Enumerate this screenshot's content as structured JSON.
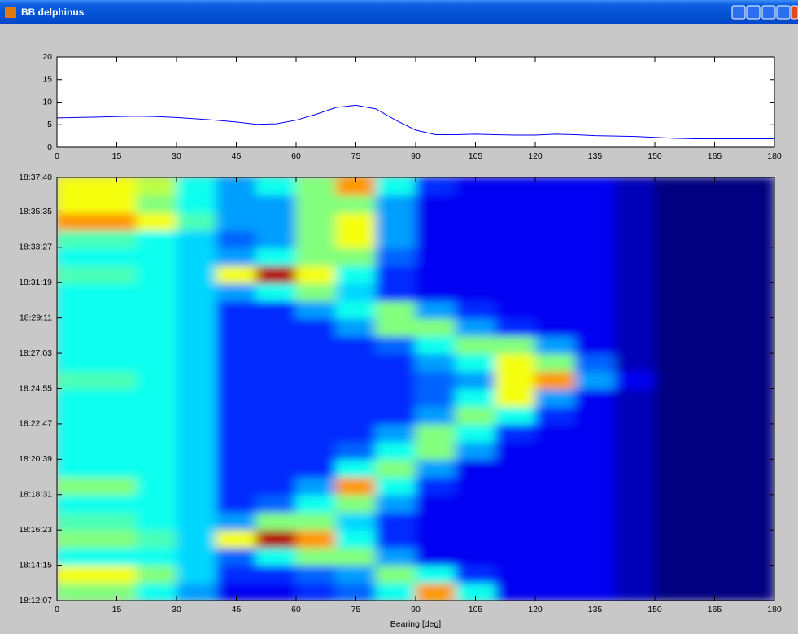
{
  "window": {
    "title": "BB delphinus"
  },
  "chart_data": [
    {
      "type": "line",
      "x": [
        0,
        5,
        10,
        15,
        20,
        25,
        30,
        35,
        40,
        45,
        50,
        55,
        60,
        65,
        70,
        75,
        80,
        85,
        90,
        95,
        100,
        105,
        110,
        115,
        120,
        125,
        130,
        135,
        140,
        145,
        150,
        155,
        160,
        165,
        170,
        175,
        180
      ],
      "values": [
        6.5,
        6.6,
        6.7,
        6.8,
        6.9,
        6.8,
        6.6,
        6.3,
        6,
        5.6,
        5.1,
        5.2,
        6,
        7.3,
        8.8,
        9.3,
        8.5,
        6,
        3.8,
        2.8,
        2.8,
        2.9,
        2.8,
        2.7,
        2.7,
        2.9,
        2.8,
        2.6,
        2.5,
        2.4,
        2.2,
        2,
        1.9,
        1.9,
        1.9,
        1.9,
        1.9
      ],
      "color": "#0000ff",
      "xlim": [
        0,
        180
      ],
      "xticks": [
        0,
        15,
        30,
        45,
        60,
        75,
        90,
        105,
        120,
        135,
        150,
        165,
        180
      ],
      "ylim": [
        0,
        20
      ],
      "yticks": [
        0,
        5,
        10,
        15,
        20
      ]
    },
    {
      "type": "heatmap",
      "colormap": "jet",
      "x_label": "Bearing [deg]",
      "xbins": [
        0,
        10,
        20,
        30,
        40,
        50,
        60,
        70,
        80,
        90,
        100,
        110,
        120,
        130,
        140,
        150,
        160,
        170,
        180
      ],
      "z": [
        [
          5,
          5,
          4,
          3,
          1.5,
          1.5,
          2,
          2.5,
          4,
          7,
          4,
          1.5,
          1.5,
          1.5,
          1,
          0.5,
          0.5,
          0.5
        ],
        [
          6,
          6,
          5,
          3.5,
          2,
          2,
          2.5,
          3,
          5,
          4,
          2,
          1.5,
          1.5,
          1.5,
          1,
          0.5,
          0.5,
          0.5
        ],
        [
          4,
          4,
          4,
          3.5,
          2.5,
          4,
          5,
          5,
          3,
          1.5,
          1.5,
          1.5,
          1.5,
          1.5,
          1,
          0.5,
          0.5,
          0.5
        ],
        [
          5,
          5,
          4.5,
          3.5,
          6,
          9,
          7,
          4,
          2,
          1.5,
          1.5,
          1.5,
          1.5,
          1.5,
          1,
          0.5,
          0.5,
          0.5
        ],
        [
          4.5,
          4.5,
          4,
          3.5,
          3,
          5,
          5,
          3.5,
          2,
          1.5,
          1.5,
          1.5,
          1.5,
          1.5,
          1,
          0.5,
          0.5,
          0.5
        ],
        [
          4,
          4,
          4,
          3.5,
          2,
          2.5,
          4,
          5,
          3,
          1.5,
          1.5,
          1.5,
          1.5,
          1.5,
          1,
          0.5,
          0.5,
          0.5
        ],
        [
          5,
          5,
          4,
          3.5,
          2,
          2,
          3,
          7,
          4,
          2,
          1.5,
          1.5,
          1.5,
          1.5,
          1,
          0.5,
          0.5,
          0.5
        ],
        [
          4,
          4,
          4,
          3.5,
          2,
          2,
          2,
          4,
          5,
          3,
          1.5,
          1.5,
          1.5,
          1.5,
          1,
          0.5,
          0.5,
          0.5
        ],
        [
          4,
          4,
          4,
          3.5,
          2,
          2,
          2,
          2.5,
          4,
          5,
          3,
          1.5,
          1.5,
          1.5,
          1,
          0.5,
          0.5,
          0.5
        ],
        [
          4,
          4,
          4,
          3.5,
          2,
          2,
          2,
          2,
          3,
          5,
          4,
          2,
          1.5,
          1.5,
          1,
          0.5,
          0.5,
          0.5
        ],
        [
          4,
          4,
          4,
          3.5,
          2,
          2,
          2,
          2,
          2,
          3,
          5,
          4,
          2,
          1.5,
          1,
          0.5,
          0.5,
          0.5
        ],
        [
          4,
          4,
          4,
          3.5,
          2,
          2,
          2,
          2,
          2,
          2.5,
          4,
          6,
          3,
          1.5,
          1,
          0.5,
          0.5,
          0.5
        ],
        [
          4.5,
          4.5,
          4,
          3.5,
          2,
          2,
          2,
          2,
          2,
          2.5,
          3,
          6,
          7,
          3,
          1.5,
          0.5,
          0.5,
          0.5
        ],
        [
          4,
          4,
          4,
          3.5,
          2,
          2,
          2,
          2,
          2,
          3,
          4,
          6,
          5,
          2.5,
          1,
          0.5,
          0.5,
          0.5
        ],
        [
          4,
          4,
          4,
          3.5,
          2,
          2,
          2,
          2,
          2.5,
          4,
          5,
          5,
          3,
          1.5,
          1,
          0.5,
          0.5,
          0.5
        ],
        [
          4,
          4,
          4,
          3.5,
          2,
          2,
          2,
          3,
          5,
          5,
          3,
          2,
          1.5,
          1.5,
          1,
          0.5,
          0.5,
          0.5
        ],
        [
          4,
          4,
          4,
          3.5,
          2,
          2,
          3,
          4,
          5,
          3,
          2,
          1.5,
          1.5,
          1.5,
          1,
          0.5,
          0.5,
          0.5
        ],
        [
          4,
          4,
          4,
          3.5,
          3,
          4,
          5,
          3.5,
          2,
          1.5,
          1.5,
          1.5,
          1.5,
          1.5,
          1,
          0.5,
          0.5,
          0.5
        ],
        [
          4.5,
          4.5,
          4,
          3.5,
          6,
          9,
          6,
          4,
          2,
          1.5,
          1.5,
          1.5,
          1.5,
          1.5,
          1,
          0.5,
          0.5,
          0.5
        ],
        [
          4,
          4,
          4,
          3.5,
          3,
          4,
          5,
          5,
          2.5,
          1.5,
          1.5,
          1.5,
          1.5,
          1.5,
          1,
          0.5,
          0.5,
          0.5
        ],
        [
          4.5,
          4.5,
          4,
          3.5,
          2.5,
          3,
          5,
          6,
          3,
          1.5,
          1.5,
          1.5,
          1.5,
          1.5,
          1,
          0.5,
          0.5,
          0.5
        ],
        [
          7,
          7,
          6,
          4.5,
          3,
          3,
          5,
          6,
          3,
          1.5,
          1.5,
          1.5,
          1.5,
          1.5,
          1,
          0.5,
          0.5,
          0.5
        ],
        [
          6,
          6,
          5,
          4,
          3,
          3,
          5,
          5,
          3,
          1.5,
          1.5,
          1.5,
          1.5,
          1.5,
          1,
          0.5,
          0.5,
          0.5
        ],
        [
          6,
          6,
          5.5,
          4,
          3,
          4,
          5,
          7,
          4,
          2,
          1.5,
          1.5,
          1.5,
          1.5,
          1,
          0.5,
          0.5,
          0.5
        ]
      ],
      "xlim": [
        0,
        180
      ],
      "xticks": [
        0,
        15,
        30,
        45,
        60,
        75,
        90,
        105,
        120,
        135,
        150,
        165,
        180
      ],
      "ylim": [
        "18:12:07",
        "18:37:40"
      ],
      "yticks": [
        "18:12:07",
        "18:14:15",
        "18:16:23",
        "18:18:31",
        "18:20:39",
        "18:22:47",
        "18:24:55",
        "18:27:03",
        "18:29:11",
        "18:31:19",
        "18:33:27",
        "18:35:35",
        "18:37:40"
      ]
    }
  ]
}
